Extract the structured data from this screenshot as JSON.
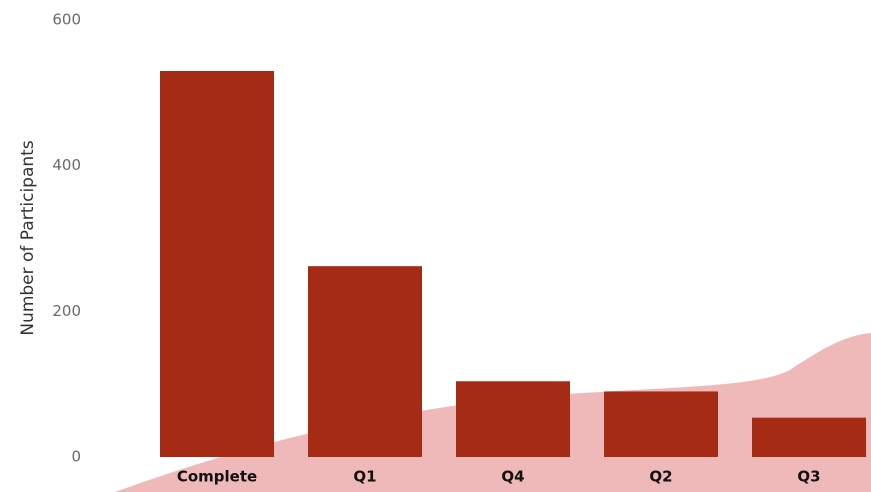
{
  "chart_data": {
    "type": "bar",
    "categories": [
      "Complete",
      "Q1",
      "Q4",
      "Q2",
      "Q3"
    ],
    "values": [
      530,
      262,
      104,
      90,
      54
    ],
    "title": "",
    "xlabel": "",
    "ylabel": "Number of Participants",
    "ylim": [
      0,
      600
    ],
    "yticks": [
      0,
      200,
      400,
      600
    ],
    "grid": false,
    "legend": "none",
    "colors": {
      "bar": "#a62b15",
      "background_wave": "#efb9b9"
    }
  }
}
